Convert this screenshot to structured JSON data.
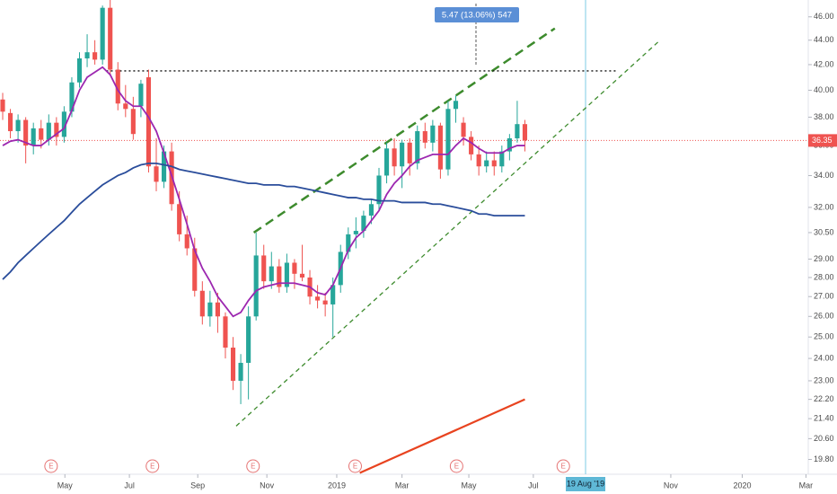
{
  "chart_data": {
    "type": "candlestick",
    "log_scale": true,
    "ylim": [
      19.25,
      47.5
    ],
    "yticks": [
      {
        "value": 46,
        "label": "46.00"
      },
      {
        "value": 44,
        "label": "44.00"
      },
      {
        "value": 42,
        "label": "42.00"
      },
      {
        "value": 40,
        "label": "40.00"
      },
      {
        "value": 38,
        "label": "38.00"
      },
      {
        "value": 36,
        "label": "36.00"
      },
      {
        "value": 34,
        "label": "34.00"
      },
      {
        "value": 32,
        "label": "32.00"
      },
      {
        "value": 30.5,
        "label": "30.50"
      },
      {
        "value": 29,
        "label": "29.00"
      },
      {
        "value": 28,
        "label": "28.00"
      },
      {
        "value": 27,
        "label": "27.00"
      },
      {
        "value": 26,
        "label": "26.00"
      },
      {
        "value": 25,
        "label": "25.00"
      },
      {
        "value": 24,
        "label": "24.00"
      },
      {
        "value": 23,
        "label": "23.00"
      },
      {
        "value": 22.2,
        "label": "22.20"
      },
      {
        "value": 21.4,
        "label": "21.40"
      },
      {
        "value": 20.6,
        "label": "20.60"
      },
      {
        "value": 19.8,
        "label": "19.80"
      }
    ],
    "xlim": [
      -0.35,
      104.9
    ],
    "xticks": [
      {
        "value": 8.1,
        "label": "May"
      },
      {
        "value": 16.5,
        "label": "Jul"
      },
      {
        "value": 25.4,
        "label": "Sep"
      },
      {
        "value": 34.4,
        "label": "Nov"
      },
      {
        "value": 43.5,
        "label": "2019"
      },
      {
        "value": 52,
        "label": "Mar"
      },
      {
        "value": 60.7,
        "label": "May"
      },
      {
        "value": 69.1,
        "label": "Jul"
      },
      {
        "value": 87,
        "label": "Nov"
      },
      {
        "value": 96.3,
        "label": "2020"
      },
      {
        "value": 104.6,
        "label": "Mar"
      }
    ],
    "up_color": "#26a69a",
    "down_color": "#ef5350",
    "open": [
      39.3,
      38.3,
      37.0,
      37.8,
      36.0,
      37.2,
      36.4,
      37.6,
      36.6,
      38.4,
      40.6,
      42.5,
      43.0,
      42.4,
      46.8,
      41.6,
      39.0,
      38.6,
      38.8,
      41.0,
      34.6,
      33.6,
      35.6,
      32.2,
      30.4,
      29.6,
      27.3,
      26.0,
      26.7,
      26.0,
      24.5,
      23.0,
      23.8,
      26.0,
      29.2,
      27.8,
      28.6,
      27.5,
      28.8,
      28.2,
      28.0,
      27.0,
      26.8,
      26.6,
      27.6,
      29.4,
      30.4,
      30.6,
      31.5,
      32.2,
      34.0,
      35.8,
      34.6,
      36.2,
      34.8,
      37.0,
      36.2,
      37.4,
      34.4,
      38.6,
      37.6,
      36.6,
      35.4,
      34.6,
      35.0,
      34.6,
      35.6,
      36.5,
      37.5
    ],
    "high": [
      39.8,
      38.6,
      38.2,
      38.0,
      37.6,
      37.8,
      38.2,
      38.0,
      38.8,
      41.0,
      43.0,
      44.5,
      44.0,
      47.0,
      47.5,
      42.2,
      40.4,
      39.5,
      40.8,
      41.6,
      36.5,
      36.0,
      36.2,
      33.0,
      31.5,
      30.2,
      27.8,
      27.3,
      27.2,
      26.2,
      25.0,
      24.2,
      26.5,
      30.5,
      29.8,
      29.4,
      29.0,
      29.3,
      29.0,
      29.8,
      28.4,
      27.6,
      27.2,
      28.0,
      29.8,
      30.8,
      31.4,
      31.8,
      32.5,
      34.5,
      36.2,
      36.5,
      36.4,
      36.5,
      37.4,
      37.6,
      37.8,
      37.6,
      39.2,
      39.6,
      38.0,
      37.0,
      36.0,
      35.6,
      35.6,
      36.0,
      36.8,
      39.2,
      37.8
    ],
    "low": [
      37.8,
      36.5,
      36.2,
      34.8,
      35.4,
      35.8,
      36.0,
      36.0,
      36.2,
      38.0,
      40.2,
      41.8,
      42.0,
      42.0,
      41.2,
      38.5,
      38.0,
      36.4,
      38.0,
      34.2,
      33.0,
      33.2,
      31.8,
      30.0,
      29.2,
      27.0,
      25.6,
      25.5,
      25.2,
      24.0,
      22.6,
      22.0,
      22.2,
      25.8,
      27.4,
      27.4,
      27.2,
      27.2,
      27.4,
      27.8,
      26.6,
      26.4,
      26.0,
      25.0,
      27.2,
      29.0,
      29.6,
      30.2,
      31.0,
      31.8,
      33.5,
      34.0,
      33.2,
      34.0,
      34.4,
      35.8,
      35.6,
      33.8,
      34.0,
      37.6,
      36.0,
      35.0,
      34.0,
      34.2,
      34.0,
      34.2,
      35.0,
      36.2,
      35.6
    ],
    "close": [
      38.4,
      37.0,
      37.8,
      36.0,
      37.2,
      36.4,
      37.6,
      36.6,
      38.4,
      40.6,
      42.5,
      43.0,
      42.4,
      46.8,
      41.6,
      39.0,
      38.6,
      36.8,
      40.5,
      34.6,
      33.6,
      35.6,
      32.2,
      30.4,
      29.6,
      27.3,
      26.0,
      26.7,
      26.0,
      24.5,
      23.0,
      23.8,
      26.0,
      29.2,
      27.8,
      28.6,
      27.5,
      28.8,
      28.2,
      28.0,
      27.0,
      26.8,
      26.6,
      27.6,
      29.4,
      30.4,
      30.6,
      31.5,
      32.2,
      34.0,
      35.8,
      34.6,
      36.2,
      34.8,
      37.0,
      36.2,
      37.4,
      34.4,
      38.6,
      39.2,
      36.6,
      35.4,
      34.6,
      35.0,
      34.6,
      35.6,
      36.5,
      37.5,
      36.35
    ],
    "overlays": [
      {
        "color": "#9c27b0",
        "values": [
          36.0,
          36.3,
          36.4,
          36.2,
          36.0,
          36.0,
          36.4,
          36.8,
          37.2,
          38.5,
          40,
          41,
          41.4,
          41.8,
          41.2,
          40,
          39.2,
          38.8,
          38.8,
          38.0,
          37.0,
          35.5,
          34,
          32.5,
          31,
          29.5,
          28.5,
          27.8,
          27.0,
          26.5,
          26.0,
          26.2,
          26.8,
          27.3,
          27.5,
          27.6,
          27.7,
          27.7,
          27.7,
          27.6,
          27.5,
          27.2,
          27.1,
          27.6,
          28.5,
          29.5,
          30.2,
          30.6,
          31.2,
          31.8,
          32.8,
          33.5,
          34.0,
          34.6,
          35.0,
          35.2,
          35.4,
          35.4,
          35.4,
          36.0,
          36.5,
          36.2,
          35.8,
          35.5,
          35.5,
          35.5,
          35.8,
          36.0,
          36.0
        ]
      },
      {
        "color": "#2a4d9b",
        "values": [
          27.9,
          28.3,
          28.8,
          29.2,
          29.6,
          30.0,
          30.4,
          30.8,
          31.2,
          31.7,
          32.2,
          32.6,
          33.0,
          33.4,
          33.7,
          34.0,
          34.2,
          34.5,
          34.7,
          34.8,
          34.8,
          34.7,
          34.6,
          34.4,
          34.3,
          34.2,
          34.1,
          34.0,
          33.9,
          33.8,
          33.7,
          33.6,
          33.5,
          33.5,
          33.4,
          33.4,
          33.4,
          33.3,
          33.3,
          33.2,
          33.1,
          33.0,
          32.9,
          32.8,
          32.7,
          32.6,
          32.6,
          32.5,
          32.5,
          32.4,
          32.4,
          32.4,
          32.3,
          32.3,
          32.3,
          32.3,
          32.2,
          32.2,
          32.1,
          32.0,
          31.9,
          31.8,
          31.6,
          31.6,
          31.5,
          31.5,
          31.5,
          31.5,
          31.5
        ]
      }
    ],
    "trendlines": [
      {
        "x": [
          32.7,
          71.9
        ],
        "y": [
          30.5,
          45
        ],
        "color": "#3d8b2d",
        "dash": "10 6",
        "width": 2.5
      },
      {
        "x": [
          30.4,
          85.6
        ],
        "y": [
          21.1,
          44
        ],
        "color": "#3d8b2d",
        "dash": "5 4",
        "width": 1.3
      },
      {
        "x": [
          46.5,
          68
        ],
        "y": [
          19.3,
          22.2
        ],
        "color": "#e8431f",
        "dash": "",
        "width": 2.2
      },
      {
        "x": [
          13.5,
          80
        ],
        "y": [
          41.5,
          41.5
        ],
        "color": "#111111",
        "dash": "2 3",
        "width": 1.3
      }
    ],
    "last_price": 36.35,
    "last_price_color": "#ef5350",
    "measure_label": "5.47 (13.06%) 547",
    "events": {
      "label": "E",
      "x": [
        6.3,
        19.5,
        32.6,
        45.9,
        59.1,
        73
      ]
    },
    "date_marker": {
      "label": "19 Aug '19",
      "x": 75.9
    }
  }
}
